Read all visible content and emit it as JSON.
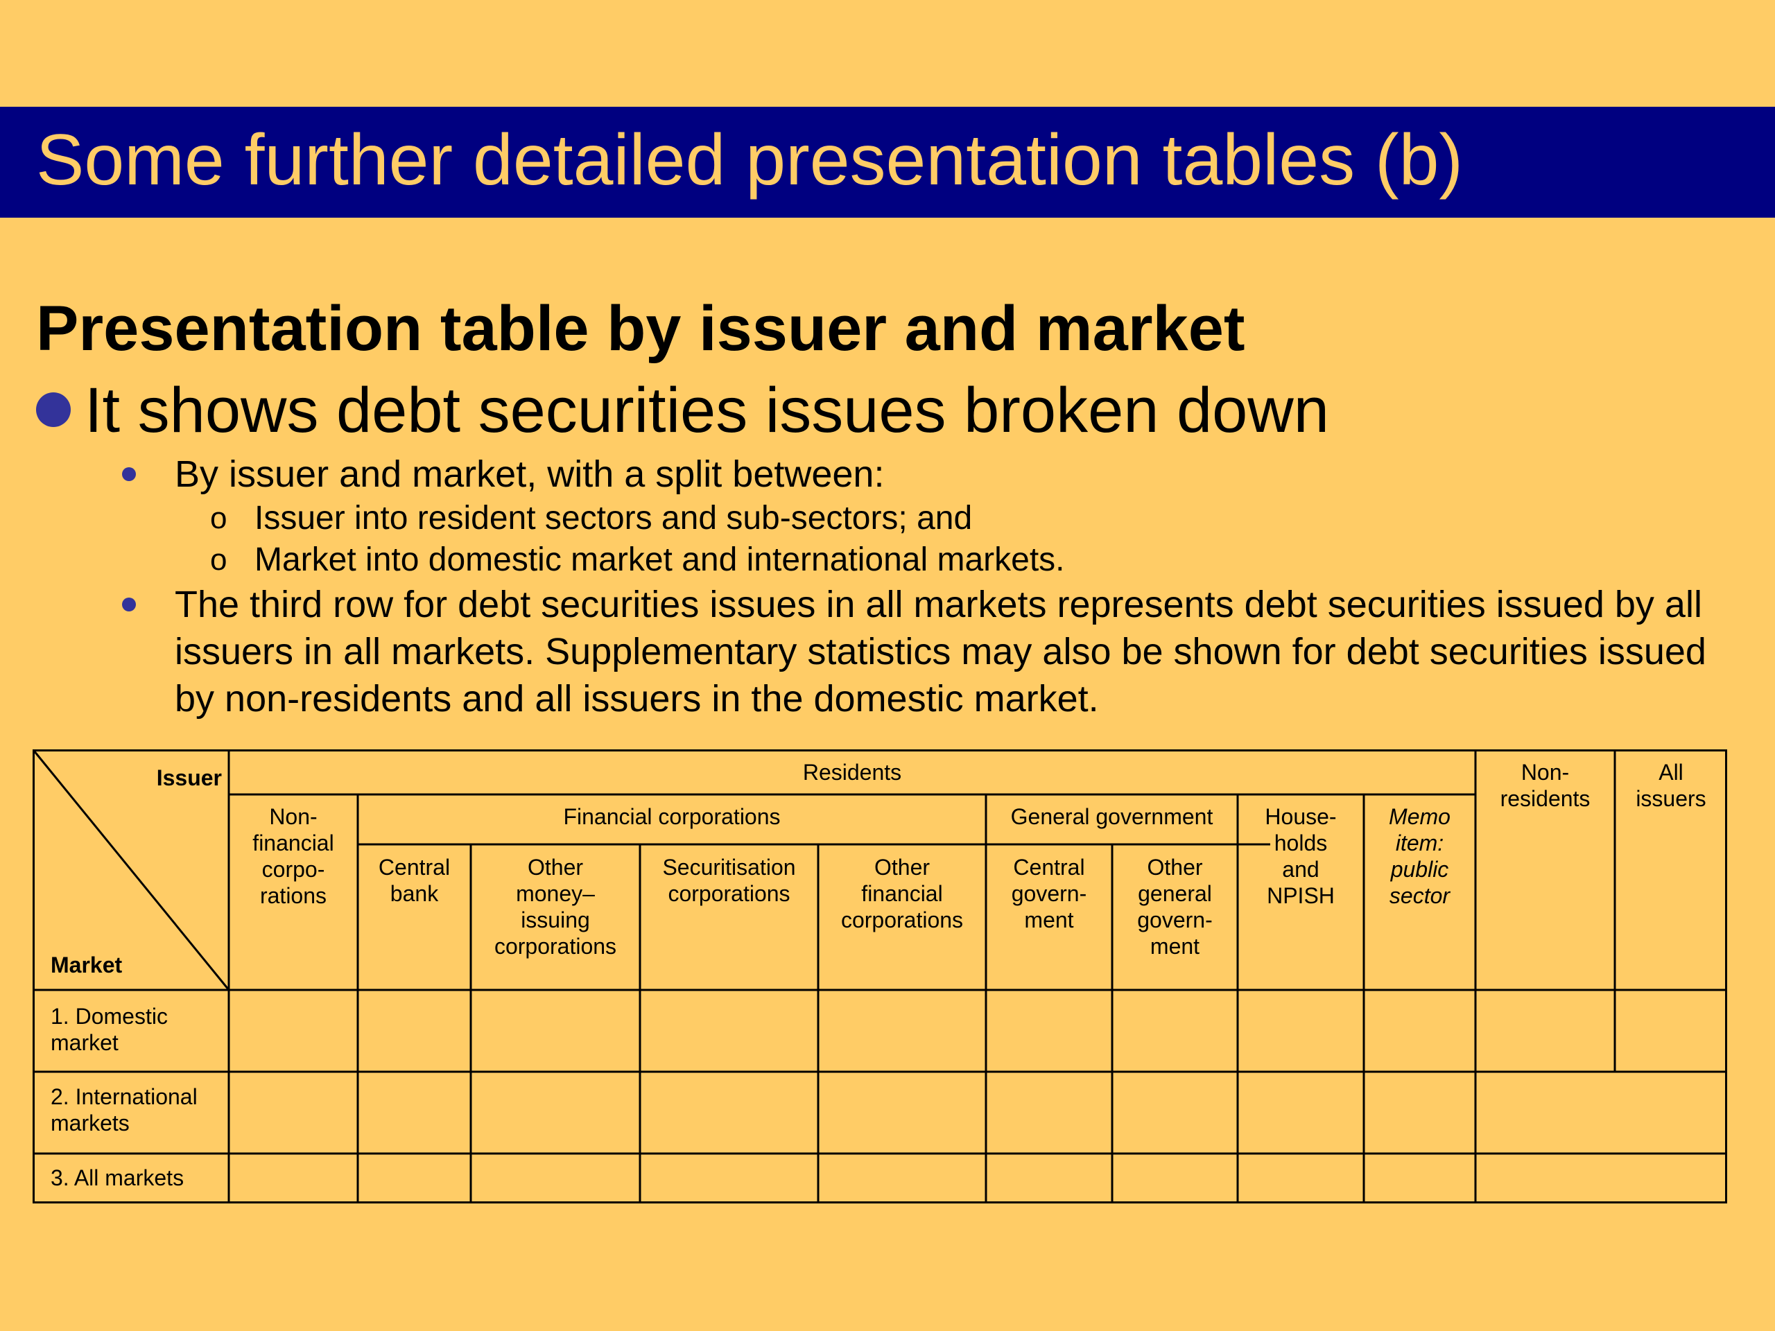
{
  "title": "Some further detailed presentation tables (b)",
  "heading": "Presentation table by issuer and market",
  "bullet_main": "It shows debt securities issues broken down",
  "sub_bullets": [
    "By issuer and market, with a split between:",
    "The third row for debt securities issues in all markets represents debt securities issued by all issuers in all markets. Supplementary statistics may also be shown for debt securities issued by non-residents and all issuers in the domestic market."
  ],
  "sub_sub_bullets": [
    "Issuer into resident sectors and sub-sectors; and",
    "Market into domestic market and international markets."
  ],
  "sub_sub_marker": "o",
  "table": {
    "corner_issuer": "Issuer",
    "corner_market": "Market",
    "residents": "Residents",
    "non_residents": "Non-\nresidents",
    "all_issuers": "All\nissuers",
    "non_financial": "Non-\nfinancial\ncorpo-\nrations",
    "financial_corporations": "Financial corporations",
    "general_government": "General government",
    "households": "House-\nholds\nand\nNPISH",
    "memo_item": "Memo\nitem:\npublic\nsector",
    "central_bank": "Central\nbank",
    "other_money_issuing": "Other\nmoney–\nissuing\ncorporations",
    "securitisation": "Securitisation\ncorporations",
    "other_financial": "Other\nfinancial\ncorporations",
    "central_government": "Central\ngovern-\nment",
    "other_general_government": "Other\ngeneral\ngovern-\nment",
    "rows": [
      "1. Domestic\nmarket",
      "2. International\nmarkets",
      "3. All markets"
    ]
  }
}
